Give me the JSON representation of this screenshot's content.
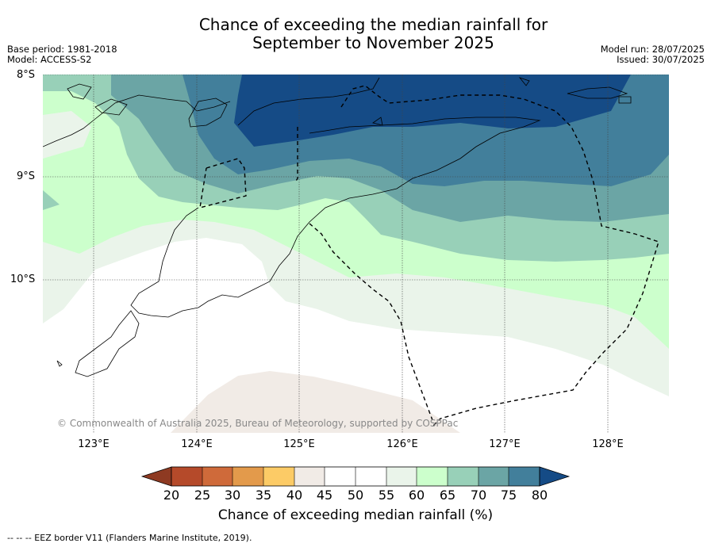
{
  "title": {
    "line1": "Chance of exceeding the median rainfall for",
    "line2": "September to November 2025"
  },
  "meta": {
    "base_period": "Base period: 1981-2018",
    "model": "Model: ACCESS-S2",
    "model_run": "Model run: 28/07/2025",
    "issued": "Issued: 30/07/2025"
  },
  "map": {
    "lat_labels": [
      "8°S",
      "9°S",
      "10°S"
    ],
    "lon_labels": [
      "123°E",
      "124°E",
      "125°E",
      "126°E",
      "127°E",
      "128°E"
    ],
    "copyright": "© Commonwealth of Australia 2025, Bureau of Meteorology, supported by COSPPac",
    "colors": {
      "p20": "#8e3a22",
      "p25": "#b54a2a",
      "p30": "#cf6a3a",
      "p35": "#e39a4b",
      "p40": "#fccb66",
      "p45": "#f1ebe6",
      "p50": "#ffffff",
      "p55": "#ffffff",
      "p60": "#eaf4ea",
      "p65": "#ccffcc",
      "p70": "#98d0b8",
      "p75": "#6ba5a5",
      "p80": "#427f9b",
      "p85": "#154b86"
    }
  },
  "colorbar": {
    "ticks": [
      "20",
      "25",
      "30",
      "35",
      "40",
      "45",
      "50",
      "55",
      "60",
      "65",
      "70",
      "75",
      "80"
    ],
    "label": "Chance of exceeding median rainfall (%)"
  },
  "footer": {
    "legend_text": "-- -- -- EEZ border V11 (Flanders Marine Institute, 2019)."
  }
}
